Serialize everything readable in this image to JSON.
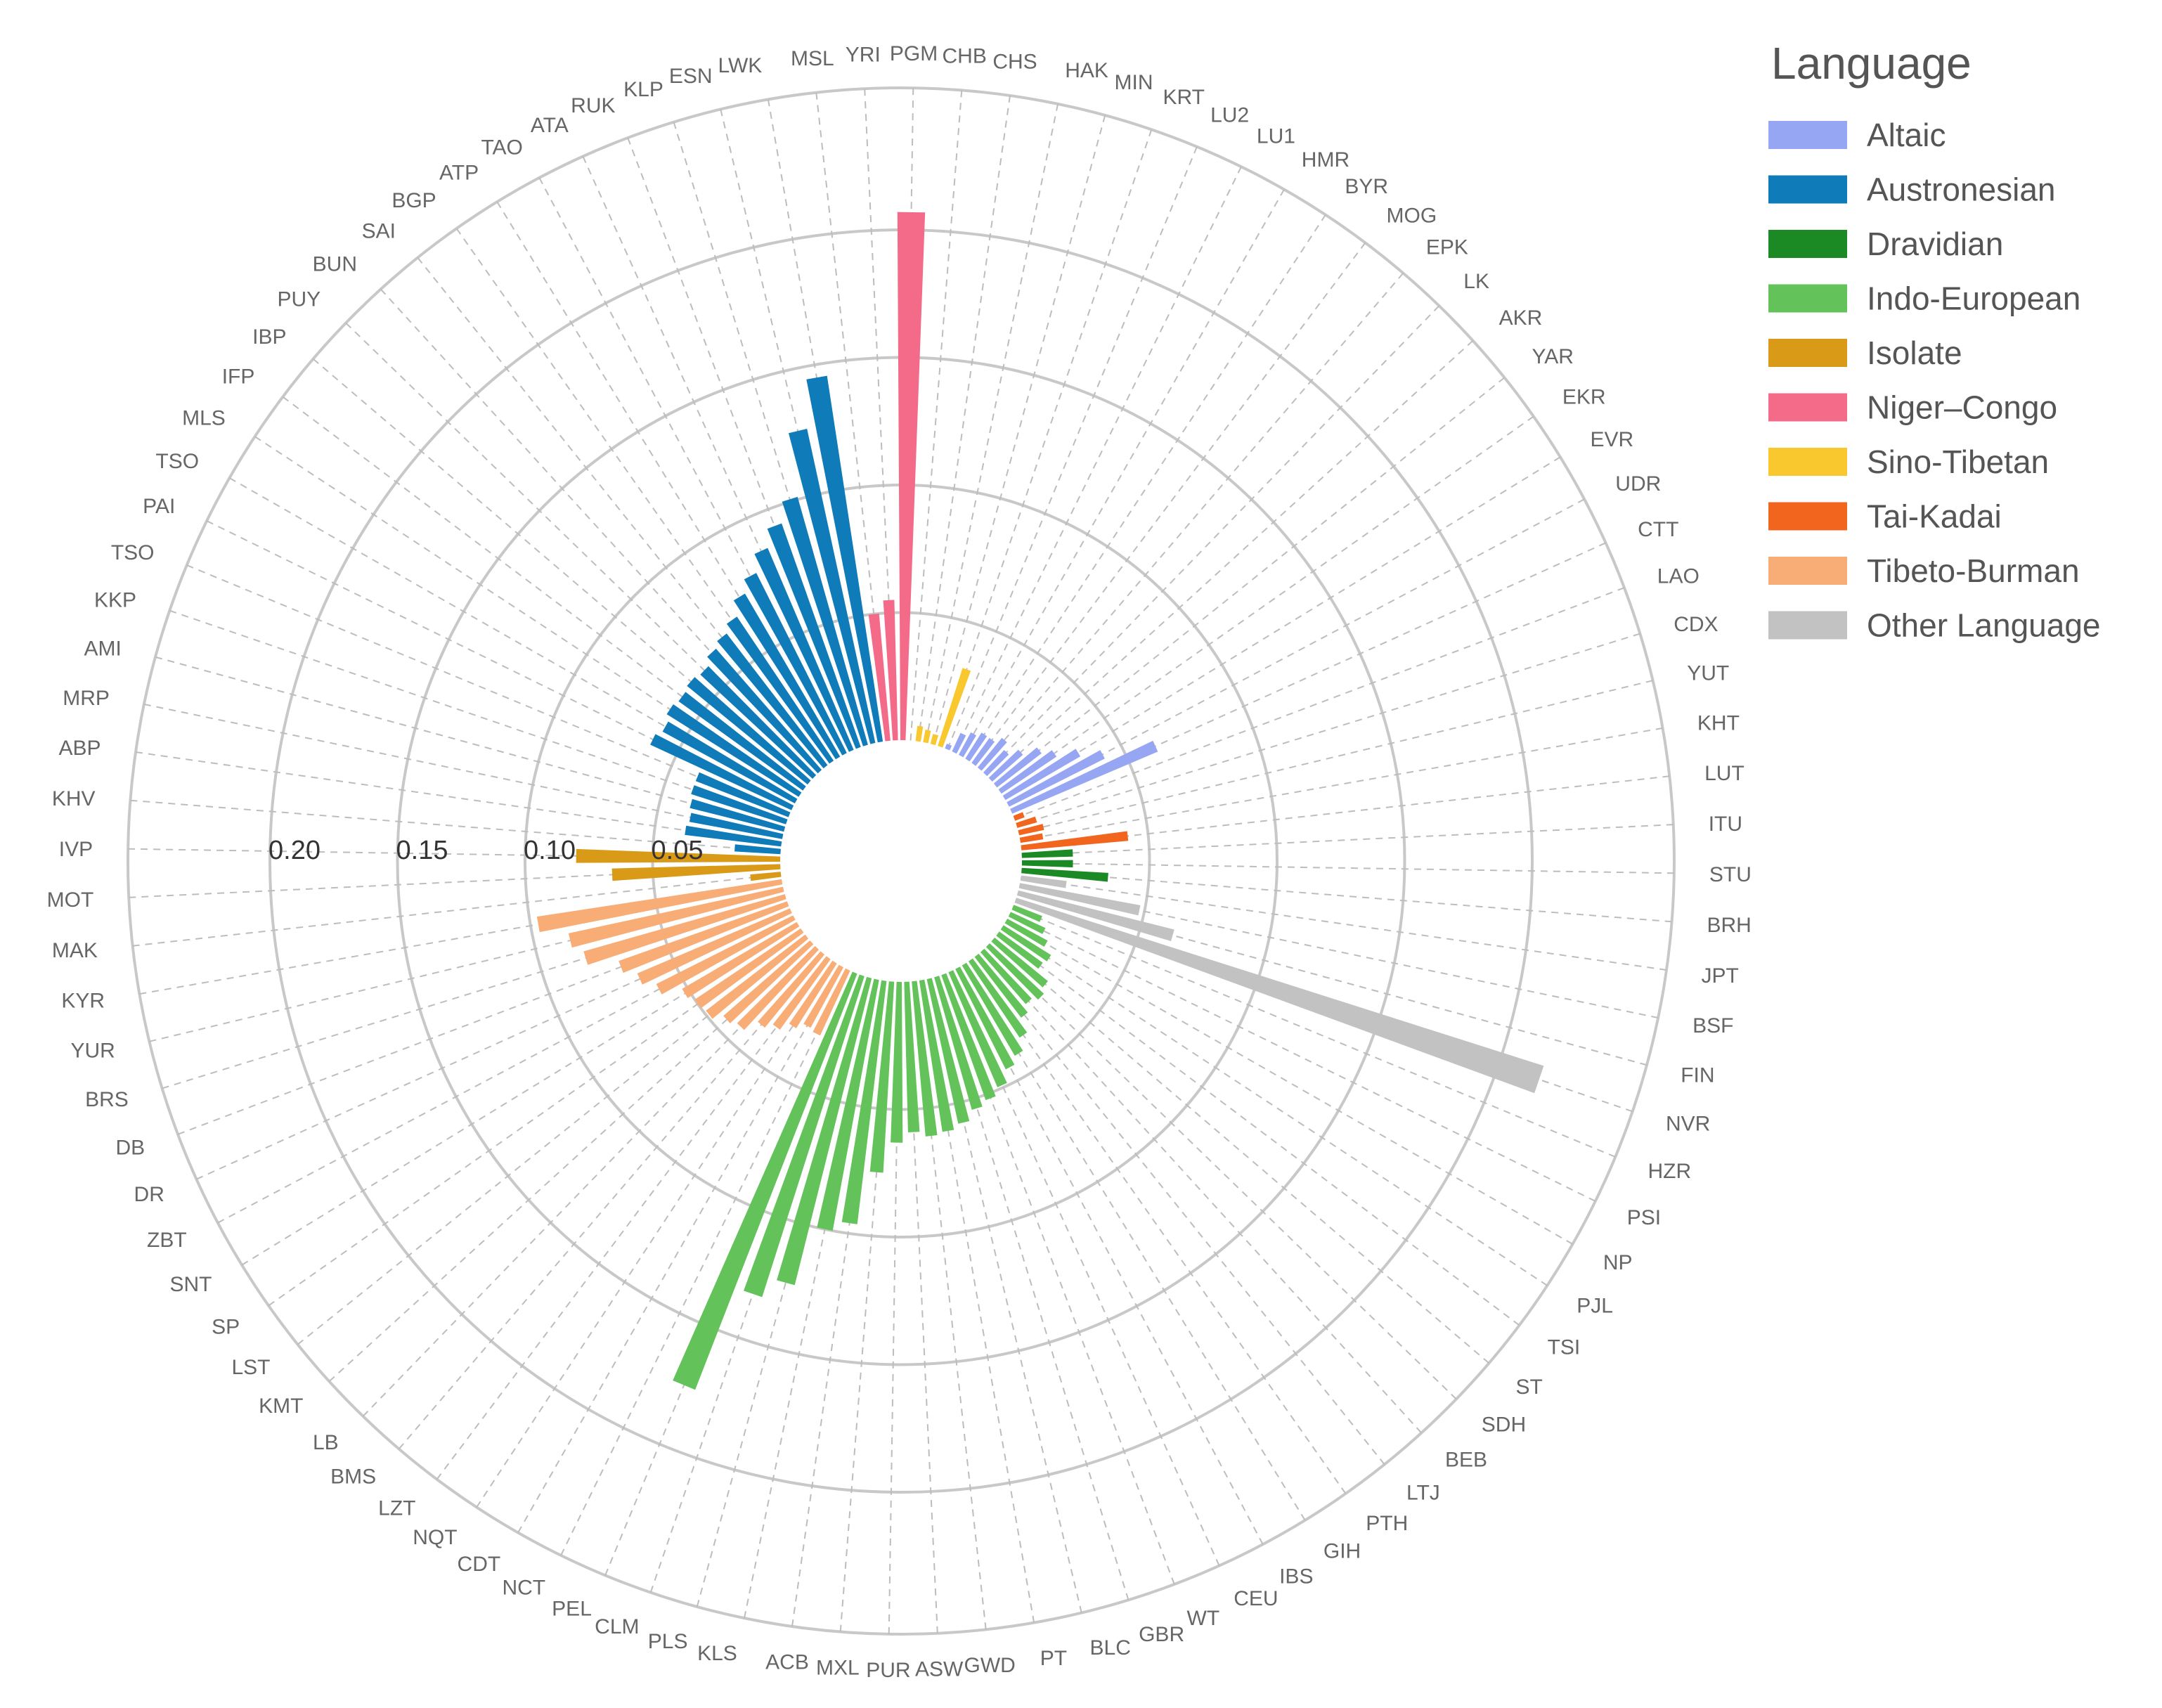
{
  "chart_data": {
    "type": "bar",
    "polar": true,
    "radial_axis_ticks": [
      0.05,
      0.1,
      0.15,
      0.2
    ],
    "radial_axis_tick_labels": [
      "0.05",
      "0.10",
      "0.15",
      "0.20"
    ],
    "rlim": [
      0,
      0.25
    ],
    "grid": true,
    "legend": {
      "title": "Language",
      "placement": "top-right",
      "items": [
        {
          "name": "Altaic",
          "color": "#96a6f2"
        },
        {
          "name": "Austronesian",
          "color": "#0f7bb8"
        },
        {
          "name": "Dravidian",
          "color": "#1b8a25"
        },
        {
          "name": "Indo-European",
          "color": "#63c25a"
        },
        {
          "name": "Isolate",
          "color": "#d99a18"
        },
        {
          "name": "Niger–Congo",
          "color": "#f36b88"
        },
        {
          "name": "Sino-Tibetan",
          "color": "#f9c72e"
        },
        {
          "name": "Tai-Kadai",
          "color": "#f2651f"
        },
        {
          "name": "Tibeto-Burman",
          "color": "#f8ad77"
        },
        {
          "name": "Other Language",
          "color": "#c2c2c2"
        }
      ]
    },
    "categories": [
      {
        "label": "CHB",
        "group": 6,
        "value": 0.0
      },
      {
        "label": "CHS",
        "group": 6,
        "value": 0.006
      },
      {
        "label": "HAK",
        "group": 6,
        "value": 0.005
      },
      {
        "label": "MIN",
        "group": 6,
        "value": 0.004
      },
      {
        "label": "KRT",
        "group": 6,
        "value": 0.032
      },
      {
        "label": "LU2",
        "group": 0,
        "value": 0.002
      },
      {
        "label": "LU1",
        "group": 0,
        "value": 0.008
      },
      {
        "label": "HMR",
        "group": 0,
        "value": 0.01
      },
      {
        "label": "BYR",
        "group": 0,
        "value": 0.012
      },
      {
        "label": "MOG",
        "group": 0,
        "value": 0.012
      },
      {
        "label": "EPK",
        "group": 0,
        "value": 0.015
      },
      {
        "label": "LK",
        "group": 0,
        "value": 0.012
      },
      {
        "label": "AKR",
        "group": 0,
        "value": 0.016
      },
      {
        "label": "YAR",
        "group": 0,
        "value": 0.022
      },
      {
        "label": "EKR",
        "group": 0,
        "value": 0.026
      },
      {
        "label": "EVR",
        "group": 0,
        "value": 0.034
      },
      {
        "label": "UDR",
        "group": 0,
        "value": 0.042
      },
      {
        "label": "CTT",
        "group": 0,
        "value": 0.062
      },
      {
        "label": "LAO",
        "group": 7,
        "value": 0.004
      },
      {
        "label": "CDX",
        "group": 7,
        "value": 0.008
      },
      {
        "label": "YUT",
        "group": 7,
        "value": 0.01
      },
      {
        "label": "KHT",
        "group": 7,
        "value": 0.009
      },
      {
        "label": "LUT",
        "group": 7,
        "value": 0.042
      },
      {
        "label": "ITU",
        "group": 2,
        "value": 0.02
      },
      {
        "label": "STU",
        "group": 2,
        "value": 0.02
      },
      {
        "label": "BRH",
        "group": 2,
        "value": 0.034
      },
      {
        "label": "JPT",
        "group": 9,
        "value": 0.018
      },
      {
        "label": "BSF",
        "group": 9,
        "value": 0.048
      },
      {
        "label": "FIN",
        "group": 9,
        "value": 0.063
      },
      {
        "label": "NVR",
        "group": 9,
        "value": 0.217
      },
      {
        "label": "HZR",
        "group": 3,
        "value": 0.012
      },
      {
        "label": "PSI",
        "group": 3,
        "value": 0.015
      },
      {
        "label": "NP",
        "group": 3,
        "value": 0.018
      },
      {
        "label": "PJL",
        "group": 3,
        "value": 0.022
      },
      {
        "label": "TSI",
        "group": 3,
        "value": 0.021
      },
      {
        "label": "ST",
        "group": 3,
        "value": 0.027
      },
      {
        "label": "SDH",
        "group": 3,
        "value": 0.029
      },
      {
        "label": "BEB",
        "group": 3,
        "value": 0.027
      },
      {
        "label": "LTJ",
        "group": 3,
        "value": 0.03
      },
      {
        "label": "PTH",
        "group": 3,
        "value": 0.036
      },
      {
        "label": "GIH",
        "group": 3,
        "value": 0.041
      },
      {
        "label": "IBS",
        "group": 3,
        "value": 0.044
      },
      {
        "label": "CEU",
        "group": 3,
        "value": 0.049
      },
      {
        "label": "WT",
        "group": 3,
        "value": 0.052
      },
      {
        "label": "GBR",
        "group": 3,
        "value": 0.054
      },
      {
        "label": "BLC",
        "group": 3,
        "value": 0.058
      },
      {
        "label": "PT",
        "group": 3,
        "value": 0.06
      },
      {
        "label": "GWD",
        "group": 3,
        "value": 0.061
      },
      {
        "label": "ASW",
        "group": 3,
        "value": 0.059
      },
      {
        "label": "PUR",
        "group": 3,
        "value": 0.063
      },
      {
        "label": "MXL",
        "group": 3,
        "value": 0.075
      },
      {
        "label": "ACB",
        "group": 3,
        "value": 0.096
      },
      {
        "label": "KLS",
        "group": 3,
        "value": 0.1
      },
      {
        "label": "PLS",
        "group": 3,
        "value": 0.124
      },
      {
        "label": "CLM",
        "group": 3,
        "value": 0.132
      },
      {
        "label": "PEL",
        "group": 3,
        "value": 0.175
      },
      {
        "label": "NCT",
        "group": 8,
        "value": 0.028
      },
      {
        "label": "CDT",
        "group": 8,
        "value": 0.027
      },
      {
        "label": "NQT",
        "group": 8,
        "value": 0.03
      },
      {
        "label": "LZT",
        "group": 8,
        "value": 0.034
      },
      {
        "label": "BMS",
        "group": 8,
        "value": 0.037
      },
      {
        "label": "LB",
        "group": 8,
        "value": 0.043
      },
      {
        "label": "KMT",
        "group": 8,
        "value": 0.045
      },
      {
        "label": "LST",
        "group": 8,
        "value": 0.049
      },
      {
        "label": "SP",
        "group": 8,
        "value": 0.05
      },
      {
        "label": "SNT",
        "group": 8,
        "value": 0.052
      },
      {
        "label": "ZBT",
        "group": 8,
        "value": 0.06
      },
      {
        "label": "DR",
        "group": 8,
        "value": 0.065
      },
      {
        "label": "DB",
        "group": 8,
        "value": 0.07
      },
      {
        "label": "BRS",
        "group": 8,
        "value": 0.082
      },
      {
        "label": "YUR",
        "group": 8,
        "value": 0.086
      },
      {
        "label": "KYR",
        "group": 8,
        "value": 0.097
      },
      {
        "label": "MAK",
        "group": 4,
        "value": 0.012
      },
      {
        "label": "MOT",
        "group": 4,
        "value": 0.066
      },
      {
        "label": "IVP",
        "group": 4,
        "value": 0.08
      },
      {
        "label": "KHV",
        "group": 1,
        "value": 0.018
      },
      {
        "label": "ABP",
        "group": 1,
        "value": 0.038
      },
      {
        "label": "MRP",
        "group": 1,
        "value": 0.037
      },
      {
        "label": "AMI",
        "group": 1,
        "value": 0.038
      },
      {
        "label": "KKP",
        "group": 1,
        "value": 0.039
      },
      {
        "label": "TSO",
        "group": 1,
        "value": 0.039
      },
      {
        "label": "PAI",
        "group": 1,
        "value": 0.061
      },
      {
        "label": "TSO",
        "group": 1,
        "value": 0.059
      },
      {
        "label": "MLS",
        "group": 1,
        "value": 0.061
      },
      {
        "label": "IFP",
        "group": 1,
        "value": 0.06
      },
      {
        "label": "IBP",
        "group": 1,
        "value": 0.061
      },
      {
        "label": "PUY",
        "group": 1,
        "value": 0.06
      },
      {
        "label": "BUN",
        "group": 1,
        "value": 0.063
      },
      {
        "label": "SAI",
        "group": 1,
        "value": 0.065
      },
      {
        "label": "BGP",
        "group": 1,
        "value": 0.068
      },
      {
        "label": "ATP",
        "group": 1,
        "value": 0.074
      },
      {
        "label": "TAO",
        "group": 1,
        "value": 0.079
      },
      {
        "label": "ATA",
        "group": 1,
        "value": 0.086
      },
      {
        "label": "RUK",
        "group": 1,
        "value": 0.093
      },
      {
        "label": "KLP",
        "group": 1,
        "value": 0.101
      },
      {
        "label": "ESN",
        "group": 1,
        "value": 0.126
      },
      {
        "label": "LWK",
        "group": 1,
        "value": 0.145
      },
      {
        "label": "MSL",
        "group": 5,
        "value": 0.05
      },
      {
        "label": "YRI",
        "group": 5,
        "value": 0.055
      },
      {
        "label": "PGM",
        "group": 5,
        "value": 0.207
      }
    ]
  }
}
